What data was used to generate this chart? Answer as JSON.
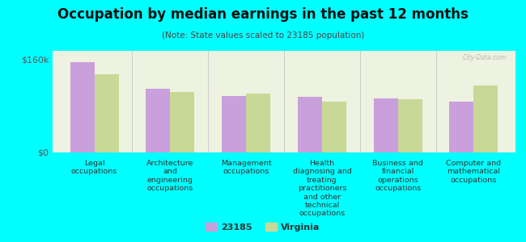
{
  "title": "Occupation by median earnings in the past 12 months",
  "subtitle": "(Note: State values scaled to 23185 population)",
  "background_color": "#00FFFF",
  "plot_bg_color": "#eef2e0",
  "categories": [
    "Legal\noccupations",
    "Architecture\nand\nengineering\noccupations",
    "Management\noccupations",
    "Health\ndiagnosing and\ntreating\npractitioners\nand other\ntechnical\noccupations",
    "Business and\nfinancial\noperations\noccupations",
    "Computer and\nmathematical\noccupations"
  ],
  "values_23185": [
    155000,
    110000,
    97000,
    96000,
    93000,
    88000
  ],
  "values_virginia": [
    135000,
    104000,
    102000,
    88000,
    92000,
    115000
  ],
  "color_23185": "#c9a0dc",
  "color_virginia": "#c8d896",
  "ylim": [
    0,
    175000
  ],
  "yticks": [
    0,
    160000
  ],
  "ytick_labels": [
    "$0",
    "$160k"
  ],
  "legend_labels": [
    "23185",
    "Virginia"
  ],
  "watermark": "City-Data.com",
  "title_fontsize": 12,
  "subtitle_fontsize": 7.5,
  "tick_label_fontsize": 6.8,
  "bar_width": 0.32
}
